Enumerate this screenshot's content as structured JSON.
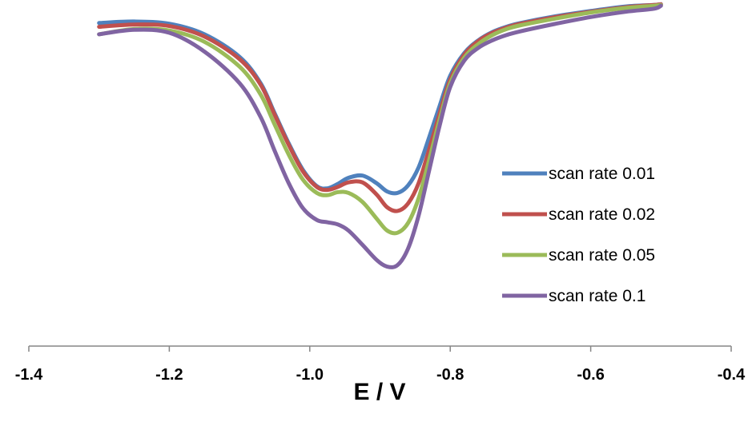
{
  "chart_data": {
    "type": "line",
    "title": "",
    "xlabel": "E / V",
    "ylabel": "",
    "xlim": [
      -1.4,
      -0.4
    ],
    "xticks": [
      -1.4,
      -1.2,
      -1.0,
      -0.8,
      -0.6,
      -0.4
    ],
    "xtick_labels": [
      "-1.4",
      "-1.2",
      "-1.0",
      "-0.8",
      "-0.6",
      "-0.4"
    ],
    "y_axis_visible": false,
    "ylim": [
      -40,
      2
    ],
    "grid": false,
    "legend_position": "right",
    "series": [
      {
        "name": "scan rate 0.01",
        "color": "#4F81BD",
        "x": [
          -1.3,
          -1.25,
          -1.2,
          -1.15,
          -1.1,
          -1.07,
          -1.05,
          -1.03,
          -1.01,
          -0.99,
          -0.975,
          -0.96,
          -0.945,
          -0.925,
          -0.905,
          -0.89,
          -0.875,
          -0.86,
          -0.845,
          -0.83,
          -0.815,
          -0.8,
          -0.78,
          -0.76,
          -0.74,
          -0.72,
          -0.7,
          -0.65,
          -0.6,
          -0.55,
          -0.51,
          -0.5
        ],
        "y": [
          0.0,
          0.2,
          -0.1,
          -1.5,
          -4.5,
          -8.0,
          -12.0,
          -16.0,
          -19.5,
          -21.7,
          -22.0,
          -21.4,
          -20.6,
          -20.3,
          -21.3,
          -22.4,
          -22.6,
          -21.6,
          -19.2,
          -15.2,
          -11.0,
          -7.0,
          -4.0,
          -2.3,
          -1.2,
          -0.5,
          0.0,
          0.9,
          1.6,
          2.2,
          2.4,
          2.5
        ]
      },
      {
        "name": "scan rate 0.02",
        "color": "#C0504D",
        "x": [
          -1.3,
          -1.25,
          -1.2,
          -1.15,
          -1.1,
          -1.07,
          -1.05,
          -1.03,
          -1.01,
          -0.99,
          -0.975,
          -0.96,
          -0.945,
          -0.925,
          -0.905,
          -0.89,
          -0.875,
          -0.86,
          -0.845,
          -0.83,
          -0.815,
          -0.8,
          -0.78,
          -0.76,
          -0.74,
          -0.72,
          -0.7,
          -0.65,
          -0.6,
          -0.55,
          -0.51,
          -0.5
        ],
        "y": [
          -0.5,
          -0.2,
          -0.4,
          -1.8,
          -4.8,
          -8.2,
          -12.2,
          -16.2,
          -19.7,
          -21.8,
          -22.2,
          -21.8,
          -21.2,
          -21.2,
          -22.8,
          -24.5,
          -25.0,
          -24.0,
          -21.3,
          -16.8,
          -12.0,
          -7.5,
          -4.2,
          -2.4,
          -1.3,
          -0.6,
          -0.1,
          0.8,
          1.5,
          2.1,
          2.4,
          2.5
        ]
      },
      {
        "name": "scan rate 0.05",
        "color": "#9BBB59",
        "x": [
          -1.3,
          -1.25,
          -1.2,
          -1.15,
          -1.1,
          -1.07,
          -1.05,
          -1.03,
          -1.01,
          -0.99,
          -0.975,
          -0.96,
          -0.945,
          -0.925,
          -0.905,
          -0.89,
          -0.875,
          -0.86,
          -0.845,
          -0.83,
          -0.815,
          -0.8,
          -0.78,
          -0.76,
          -0.74,
          -0.72,
          -0.7,
          -0.65,
          -0.6,
          -0.55,
          -0.51,
          -0.5
        ],
        "y": [
          -1.5,
          -0.8,
          -1.0,
          -2.5,
          -5.8,
          -9.5,
          -13.5,
          -17.5,
          -20.8,
          -22.6,
          -22.9,
          -22.5,
          -22.6,
          -23.8,
          -26.0,
          -27.6,
          -27.9,
          -26.6,
          -23.3,
          -18.2,
          -12.8,
          -8.0,
          -4.6,
          -2.8,
          -1.6,
          -0.8,
          -0.3,
          0.6,
          1.4,
          2.0,
          2.3,
          2.4
        ]
      },
      {
        "name": "scan rate 0.1",
        "color": "#8064A2",
        "x": [
          -1.3,
          -1.25,
          -1.2,
          -1.15,
          -1.1,
          -1.07,
          -1.05,
          -1.03,
          -1.01,
          -0.99,
          -0.975,
          -0.96,
          -0.945,
          -0.925,
          -0.905,
          -0.89,
          -0.875,
          -0.86,
          -0.845,
          -0.83,
          -0.815,
          -0.8,
          -0.78,
          -0.76,
          -0.74,
          -0.72,
          -0.7,
          -0.65,
          -0.6,
          -0.55,
          -0.51,
          -0.5
        ],
        "y": [
          -1.5,
          -0.9,
          -1.3,
          -3.8,
          -8.0,
          -12.5,
          -17.0,
          -21.3,
          -24.6,
          -26.2,
          -26.5,
          -26.8,
          -27.6,
          -29.5,
          -31.5,
          -32.4,
          -32.2,
          -30.0,
          -25.6,
          -19.6,
          -13.6,
          -8.5,
          -5.0,
          -3.3,
          -2.3,
          -1.6,
          -1.1,
          -0.1,
          0.8,
          1.5,
          1.9,
          2.3
        ]
      }
    ]
  }
}
